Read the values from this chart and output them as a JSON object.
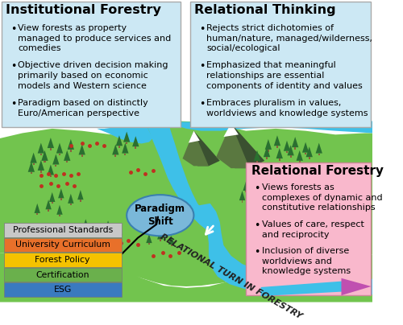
{
  "inst_title": "Institutional Forestry",
  "inst_bullets": [
    "View forests as property\nmanaged to produce services and\ncomedies",
    "Objective driven decision making\nprimarily based on economic\nmodels and Western science",
    "Paradigm based on distinctly\nEuro/American perspective"
  ],
  "rel_think_title": "Relational Thinking",
  "rel_think_bullets": [
    "Rejects strict dichotomies of\nhuman/nature, managed/wilderness,\nsocial/ecological",
    "Emphasized that meaningful\nrelationships are essential\ncomponents of identity and values",
    "Embraces pluralism in values,\nworldviews and knowledge systems"
  ],
  "rel_for_title": "Relational Forestry",
  "rel_for_bullets": [
    "Views forests as\ncomplexes of dynamic and\nconstitutive relationships",
    "Values of care, respect\nand reciprocity",
    "Inclusion of diverse\nworldviews and\nknowledge systems"
  ],
  "paradigm_label": "Paradigm\nShift",
  "turn_label": "RELATIONAL TURN IN FORESTRY",
  "bars": [
    {
      "label": "Professional Standards",
      "color": "#c8c8c8"
    },
    {
      "label": "University Curriculum",
      "color": "#e8702a"
    },
    {
      "label": "Forest Policy",
      "color": "#f5c200"
    },
    {
      "label": "Certification",
      "color": "#6ab04c"
    },
    {
      "label": "ESG",
      "color": "#3a7abf"
    }
  ],
  "box_bg_light_blue": "#cce8f4",
  "box_bg_pink": "#f9b8cc",
  "grass_green": "#72c44e",
  "water_blue": "#3ec0e8",
  "dark_green": "#3a7a30"
}
